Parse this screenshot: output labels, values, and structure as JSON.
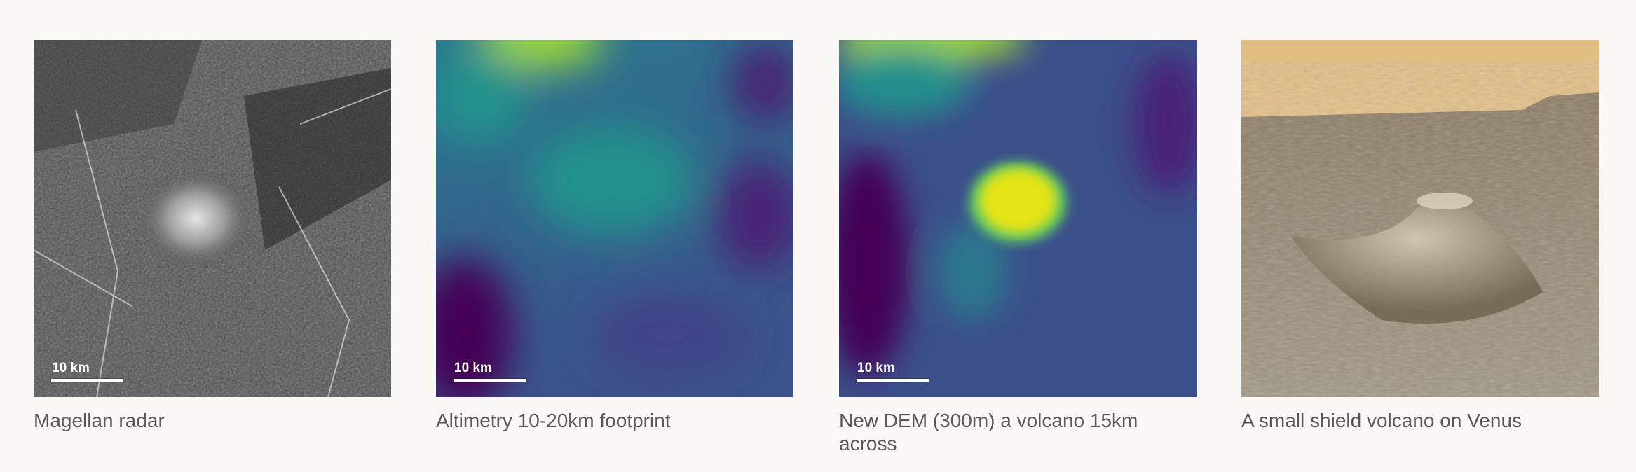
{
  "panels": [
    {
      "scale_label": "10 km",
      "caption": "Magellan radar"
    },
    {
      "scale_label": "10 km",
      "caption": "Altimetry 10-20km footprint"
    },
    {
      "scale_label": "10 km",
      "caption": "New DEM (300m) a volcano 15km across"
    },
    {
      "caption": "A small shield volcano on Venus"
    }
  ]
}
